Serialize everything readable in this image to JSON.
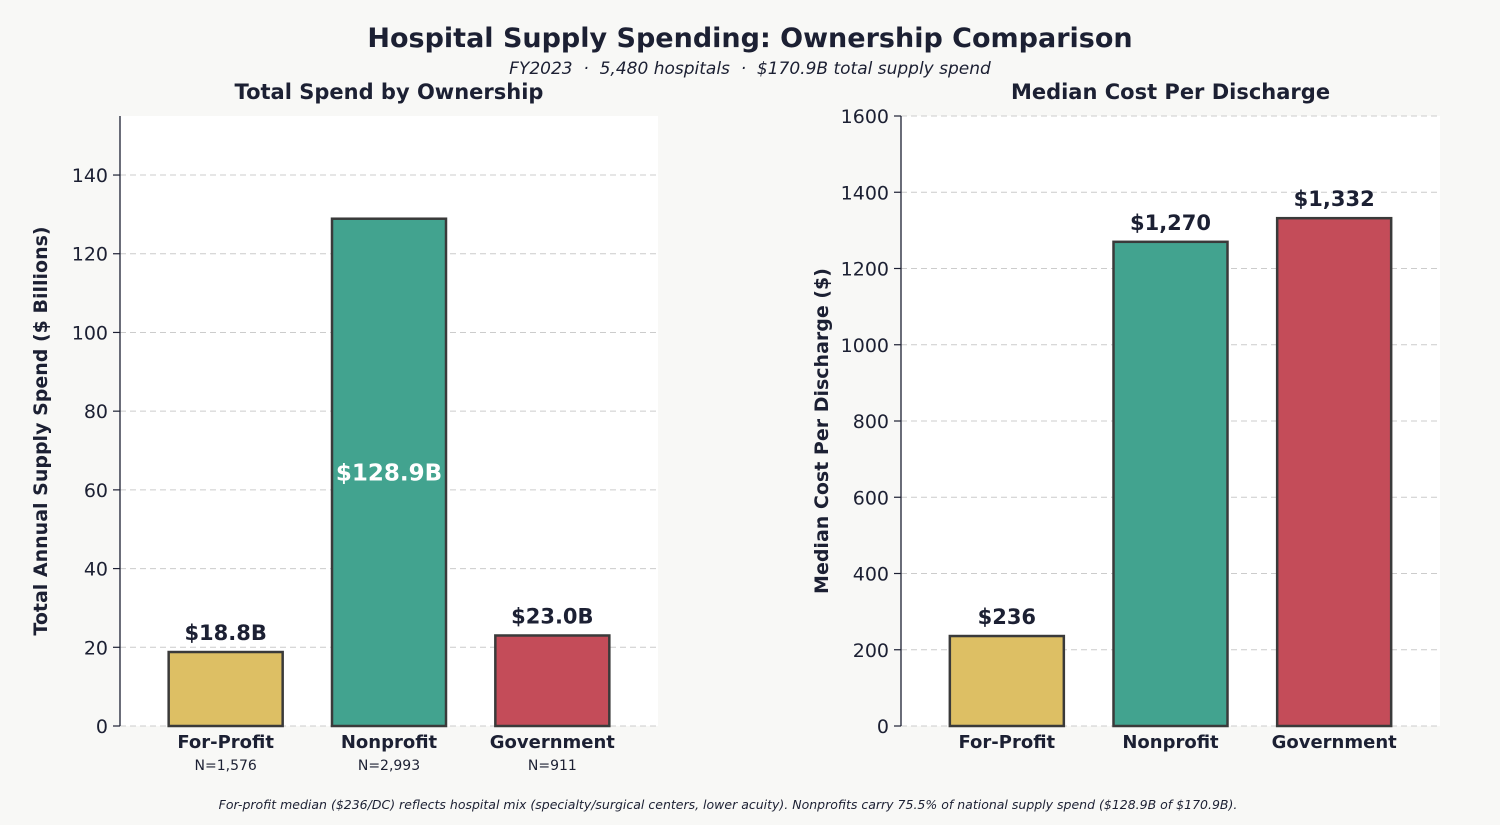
{
  "title": "Hospital Supply Spending: Ownership Comparison",
  "subtitle": "FY2023  ·  5,480 hospitals  ·  $170.9B total supply spend",
  "footnote": "For-profit median ($236/DC) reflects hospital mix (specialty/surgical centers, lower acuity). Nonprofits carry 75.5% of national supply spend ($128.9B of $170.9B).",
  "colors": {
    "For-Profit": "#ddbf64",
    "Nonprofit": "#42a38f",
    "Government": "#c44c59",
    "edge": "#3a3a3a"
  },
  "chart_data": [
    {
      "type": "bar",
      "title": "Total Spend by Ownership",
      "xlabel": "",
      "ylabel": "Total Annual Supply Spend ($ Billions)",
      "categories": [
        "For-Profit",
        "Nonprofit",
        "Government"
      ],
      "sublabels": [
        "N=1,576",
        "N=2,993",
        "N=911"
      ],
      "values": [
        18.8,
        128.9,
        23.0
      ],
      "data_labels": [
        "$18.8B",
        "$128.9B",
        "$23.0B"
      ],
      "label_inside": [
        false,
        true,
        false
      ],
      "ylim": [
        0,
        155
      ],
      "yticks": [
        0,
        20,
        40,
        60,
        80,
        100,
        120,
        140
      ],
      "grid": true
    },
    {
      "type": "bar",
      "title": "Median Cost Per Discharge",
      "xlabel": "",
      "ylabel": "Median Cost Per Discharge ($)",
      "categories": [
        "For-Profit",
        "Nonprofit",
        "Government"
      ],
      "values": [
        236,
        1270,
        1332
      ],
      "data_labels": [
        "$236",
        "$1,270",
        "$1,332"
      ],
      "label_inside": [
        false,
        false,
        false
      ],
      "ylim": [
        0,
        1600
      ],
      "yticks": [
        0,
        200,
        400,
        600,
        800,
        1000,
        1200,
        1400,
        1600
      ],
      "grid": true
    }
  ]
}
